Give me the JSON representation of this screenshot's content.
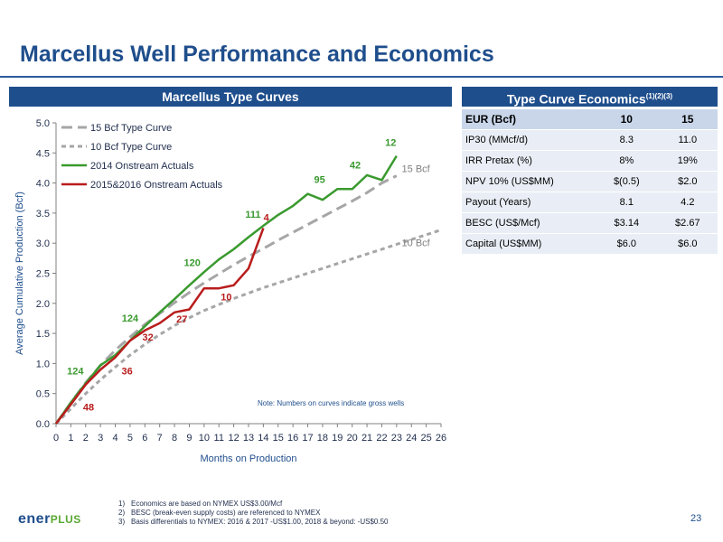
{
  "title": "Marcellus Well Performance and Economics",
  "left_header": "Marcellus Type Curves",
  "right_header": "Type Curve Economics",
  "right_header_sup": "(1)(2)(3)",
  "chart_data": {
    "type": "line",
    "xlabel": "Months on Production",
    "ylabel": "Average Cumulative Production (Bcf)",
    "xlim": [
      0,
      26
    ],
    "ylim": [
      0,
      5
    ],
    "xticks": [
      0,
      1,
      2,
      3,
      4,
      5,
      6,
      7,
      8,
      9,
      10,
      11,
      12,
      13,
      14,
      15,
      16,
      17,
      18,
      19,
      20,
      21,
      22,
      23,
      24,
      25,
      26
    ],
    "yticks": [
      "0.0",
      "0.5",
      "1.0",
      "1.5",
      "2.0",
      "2.5",
      "3.0",
      "3.5",
      "4.0",
      "4.5",
      "5.0"
    ],
    "grid": false,
    "legend_position": "top-left",
    "series": [
      {
        "name": "15 Bcf Type Curve",
        "color": "#a6a6a6",
        "dash": "12,6",
        "width": 3,
        "x": [
          0,
          1,
          2,
          3,
          4,
          5,
          6,
          7,
          8,
          9,
          10,
          11,
          12,
          13,
          14,
          15,
          16,
          17,
          18,
          19,
          20,
          21,
          22,
          23
        ],
        "y": [
          0,
          0.35,
          0.68,
          0.97,
          1.22,
          1.44,
          1.65,
          1.83,
          2.01,
          2.18,
          2.34,
          2.49,
          2.64,
          2.78,
          2.91,
          3.05,
          3.18,
          3.31,
          3.44,
          3.57,
          3.7,
          3.84,
          4.0,
          4.12
        ]
      },
      {
        "name": "10 Bcf Type Curve",
        "color": "#a6a6a6",
        "dash": "5,4",
        "width": 3,
        "x": [
          0,
          1,
          2,
          3,
          4,
          5,
          6,
          7,
          8,
          9,
          10,
          11,
          12,
          13,
          14,
          15,
          16,
          17,
          18,
          19,
          20,
          21,
          22,
          23,
          24,
          25,
          26
        ],
        "y": [
          0,
          0.25,
          0.5,
          0.73,
          0.94,
          1.14,
          1.32,
          1.48,
          1.63,
          1.76,
          1.88,
          1.98,
          2.08,
          2.17,
          2.26,
          2.34,
          2.42,
          2.5,
          2.58,
          2.66,
          2.74,
          2.82,
          2.9,
          2.98,
          3.06,
          3.14,
          3.22
        ]
      },
      {
        "name": "2014 Onstream Actuals",
        "color": "#3a9a2f",
        "dash": "",
        "width": 2.5,
        "x": [
          0,
          1,
          2,
          3,
          4,
          5,
          6,
          7,
          8,
          9,
          10,
          11,
          12,
          13,
          14,
          15,
          16,
          17,
          18,
          19,
          20,
          21,
          22,
          23
        ],
        "y": [
          0,
          0.35,
          0.67,
          0.97,
          1.14,
          1.38,
          1.62,
          1.85,
          2.07,
          2.3,
          2.52,
          2.73,
          2.9,
          3.1,
          3.29,
          3.47,
          3.62,
          3.82,
          3.72,
          3.9,
          3.9,
          4.13,
          4.05,
          4.45
        ]
      },
      {
        "name": "2015&2016 Onstream Actuals",
        "color": "#b91c1c",
        "dash": "",
        "width": 2.5,
        "x": [
          0,
          1,
          2,
          3,
          4,
          5,
          6,
          7,
          8,
          9,
          10,
          11,
          12,
          13,
          14
        ],
        "y": [
          0,
          0.32,
          0.65,
          0.9,
          1.1,
          1.38,
          1.55,
          1.67,
          1.85,
          1.9,
          2.25,
          2.25,
          2.3,
          2.58,
          3.25
        ]
      }
    ],
    "annotations": [
      {
        "text": "48",
        "x": 2.2,
        "y": 0.22,
        "color": "#b91c1c"
      },
      {
        "text": "124",
        "x": 1.3,
        "y": 0.82,
        "color": "#3a9a2f"
      },
      {
        "text": "36",
        "x": 4.8,
        "y": 0.82,
        "color": "#b91c1c"
      },
      {
        "text": "124",
        "x": 5.0,
        "y": 1.7,
        "color": "#3a9a2f"
      },
      {
        "text": "32",
        "x": 6.2,
        "y": 1.38,
        "color": "#b91c1c"
      },
      {
        "text": "27",
        "x": 8.5,
        "y": 1.68,
        "color": "#b91c1c"
      },
      {
        "text": "120",
        "x": 9.2,
        "y": 2.62,
        "color": "#3a9a2f"
      },
      {
        "text": "10",
        "x": 11.5,
        "y": 2.05,
        "color": "#b91c1c"
      },
      {
        "text": "111",
        "x": 13.3,
        "y": 3.42,
        "color": "#3a9a2f"
      },
      {
        "text": "4",
        "x": 14.2,
        "y": 3.37,
        "color": "#b91c1c"
      },
      {
        "text": "95",
        "x": 17.8,
        "y": 4.0,
        "color": "#3a9a2f"
      },
      {
        "text": "42",
        "x": 20.2,
        "y": 4.24,
        "color": "#3a9a2f"
      },
      {
        "text": "12",
        "x": 22.6,
        "y": 4.62,
        "color": "#3a9a2f"
      },
      {
        "text": "15 Bcf",
        "x": 24.3,
        "y": 4.18,
        "color": "#7f7f7f"
      },
      {
        "text": "10 Bcf",
        "x": 24.3,
        "y": 2.95,
        "color": "#7f7f7f"
      }
    ],
    "note": "Note: Numbers on curves indicate gross wells"
  },
  "economics": {
    "header": [
      "EUR (Bcf)",
      "10",
      "15"
    ],
    "rows": [
      [
        "IP30 (MMcf/d)",
        "8.3",
        "11.0"
      ],
      [
        "IRR Pretax (%)",
        "8%",
        "19%"
      ],
      [
        "NPV 10% (US$MM)",
        "$(0.5)",
        "$2.0"
      ],
      [
        "Payout (Years)",
        "8.1",
        "4.2"
      ],
      [
        "BESC (US$/Mcf)",
        "$3.14",
        "$2.67"
      ],
      [
        "Capital (US$MM)",
        "$6.0",
        "$6.0"
      ]
    ]
  },
  "footnotes": [
    {
      "n": "1)",
      "text": "Economics are based on NYMEX US$3.00/Mcf"
    },
    {
      "n": "2)",
      "text": "BESC (break-even supply costs) are referenced to NYMEX"
    },
    {
      "n": "3)",
      "text": "Basis differentials to NYMEX: 2016 & 2017 -US$1.00, 2018 & beyond: -US$0.50"
    }
  ],
  "logo": {
    "part1": "ener",
    "part2": "PLUS"
  },
  "page_number": "23"
}
